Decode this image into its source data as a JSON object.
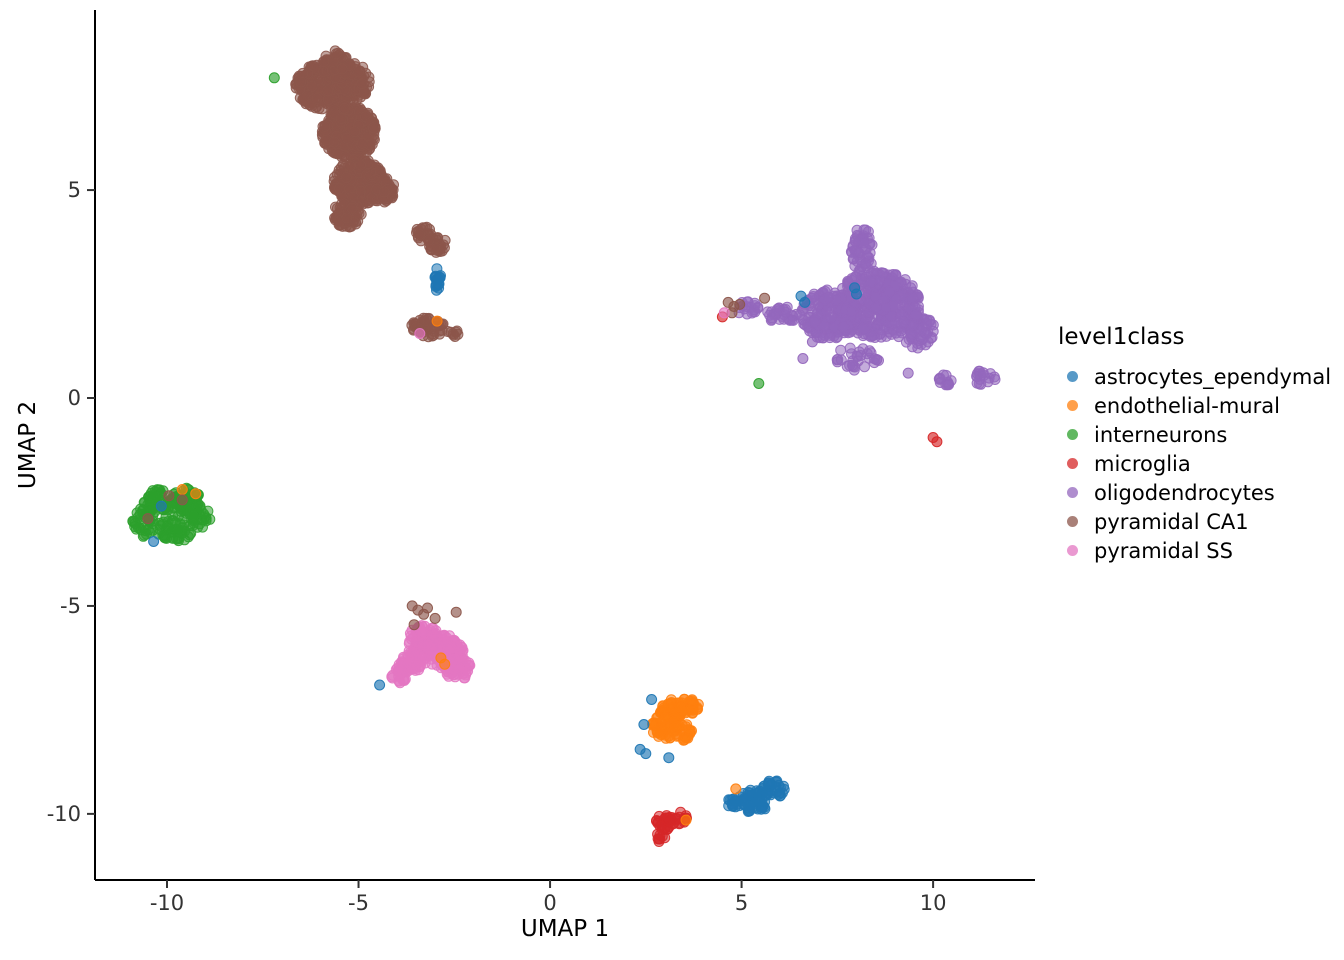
{
  "figure": {
    "legend": {
      "title": "level1class",
      "entries": [
        {
          "label": "astrocytes_ependymal",
          "color": "#1F77B4"
        },
        {
          "label": "endothelial-mural",
          "color": "#FF7F0E"
        },
        {
          "label": "interneurons",
          "color": "#2CA02C"
        },
        {
          "label": "microglia",
          "color": "#D62728"
        },
        {
          "label": "oligodendrocytes",
          "color": "#9467BD"
        },
        {
          "label": "pyramidal CA1",
          "color": "#8C564B"
        },
        {
          "label": "pyramidal SS",
          "color": "#E377C2"
        }
      ]
    }
  },
  "chart_data": {
    "type": "scatter",
    "title": "",
    "xlabel": "UMAP 1",
    "ylabel": "UMAP 2",
    "xlim": [
      -11.88,
      12.66
    ],
    "ylim": [
      -11.59,
      9.33
    ],
    "x_ticks": [
      -10,
      -5,
      0,
      5,
      10
    ],
    "y_ticks": [
      -10,
      -5,
      0,
      5
    ],
    "grid": false,
    "legend_position": "right",
    "point_radius_px": 5,
    "point_alpha": 0.55,
    "series": [
      {
        "name": "astrocytes_ependymal",
        "color": "#1F77B4",
        "clusters": [
          {
            "cx": -2.93,
            "cy": 2.85,
            "rx": 0.08,
            "ry": 0.32,
            "n": 20
          },
          {
            "cx": 5.3,
            "cy": -9.7,
            "rx": 0.4,
            "ry": 0.28,
            "n": 55
          },
          {
            "cx": 5.85,
            "cy": -9.4,
            "rx": 0.3,
            "ry": 0.22,
            "n": 30
          },
          {
            "cx": 4.8,
            "cy": -9.7,
            "rx": 0.2,
            "ry": 0.15,
            "n": 14
          }
        ],
        "points": [
          [
            6.55,
            2.45
          ],
          [
            6.65,
            2.3
          ],
          [
            7.95,
            2.65
          ],
          [
            8.0,
            2.5
          ],
          [
            -10.35,
            -3.45
          ],
          [
            -10.15,
            -2.6
          ],
          [
            -4.45,
            -6.9
          ],
          [
            2.45,
            -7.85
          ],
          [
            2.35,
            -8.45
          ],
          [
            2.5,
            -8.55
          ],
          [
            3.1,
            -8.65
          ],
          [
            2.65,
            -7.25
          ]
        ]
      },
      {
        "name": "endothelial-mural",
        "color": "#FF7F0E",
        "clusters": [
          {
            "cx": 3.2,
            "cy": -7.5,
            "rx": 0.35,
            "ry": 0.25,
            "n": 55
          },
          {
            "cx": 3.65,
            "cy": -7.4,
            "rx": 0.28,
            "ry": 0.2,
            "n": 35
          },
          {
            "cx": 3.0,
            "cy": -7.9,
            "rx": 0.35,
            "ry": 0.3,
            "n": 50
          },
          {
            "cx": 3.45,
            "cy": -8.05,
            "rx": 0.25,
            "ry": 0.22,
            "n": 25
          }
        ],
        "points": [
          [
            -2.95,
            1.85
          ],
          [
            -2.85,
            -6.25
          ],
          [
            -2.75,
            -6.4
          ],
          [
            -9.25,
            -2.3
          ],
          [
            -9.6,
            -2.2
          ],
          [
            4.85,
            -9.4
          ],
          [
            3.55,
            -10.15
          ]
        ]
      },
      {
        "name": "interneurons",
        "color": "#2CA02C",
        "clusters": [
          {
            "cx": -10.25,
            "cy": -2.5,
            "rx": 0.35,
            "ry": 0.3,
            "n": 50
          },
          {
            "cx": -9.5,
            "cy": -2.5,
            "rx": 0.4,
            "ry": 0.35,
            "n": 60
          },
          {
            "cx": -9.8,
            "cy": -3.15,
            "rx": 0.45,
            "ry": 0.35,
            "n": 50
          },
          {
            "cx": -10.6,
            "cy": -3.0,
            "rx": 0.3,
            "ry": 0.35,
            "n": 35
          },
          {
            "cx": -9.15,
            "cy": -2.85,
            "rx": 0.28,
            "ry": 0.28,
            "n": 25
          }
        ],
        "points": [
          [
            -7.2,
            7.7
          ],
          [
            5.45,
            0.35
          ]
        ]
      },
      {
        "name": "microglia",
        "color": "#D62728",
        "clusters": [
          {
            "cx": 3.0,
            "cy": -10.2,
            "rx": 0.25,
            "ry": 0.2,
            "n": 26
          },
          {
            "cx": 3.4,
            "cy": -10.1,
            "rx": 0.18,
            "ry": 0.14,
            "n": 12
          },
          {
            "cx": 2.85,
            "cy": -10.55,
            "rx": 0.15,
            "ry": 0.12,
            "n": 8
          }
        ],
        "points": [
          [
            10.0,
            -0.95
          ],
          [
            10.1,
            -1.05
          ],
          [
            4.5,
            1.95
          ]
        ]
      },
      {
        "name": "oligodendrocytes",
        "color": "#9467BD",
        "clusters": [
          {
            "cx": 8.15,
            "cy": 3.55,
            "rx": 0.3,
            "ry": 0.55,
            "n": 60
          },
          {
            "cx": 8.55,
            "cy": 2.25,
            "rx": 1.1,
            "ry": 0.8,
            "n": 420
          },
          {
            "cx": 7.3,
            "cy": 2.0,
            "rx": 0.75,
            "ry": 0.6,
            "n": 200
          },
          {
            "cx": 9.55,
            "cy": 1.6,
            "rx": 0.5,
            "ry": 0.4,
            "n": 60
          },
          {
            "cx": 8.0,
            "cy": 0.95,
            "rx": 0.6,
            "ry": 0.28,
            "n": 30
          },
          {
            "cx": 6.1,
            "cy": 2.0,
            "rx": 0.45,
            "ry": 0.2,
            "n": 30
          },
          {
            "cx": 5.15,
            "cy": 2.15,
            "rx": 0.3,
            "ry": 0.18,
            "n": 18
          },
          {
            "cx": 10.35,
            "cy": 0.45,
            "rx": 0.22,
            "ry": 0.15,
            "n": 12
          },
          {
            "cx": 11.35,
            "cy": 0.5,
            "rx": 0.3,
            "ry": 0.2,
            "n": 18
          }
        ],
        "points": [
          [
            6.6,
            0.95
          ],
          [
            6.85,
            1.35
          ],
          [
            9.35,
            0.6
          ]
        ]
      },
      {
        "name": "pyramidal CA1",
        "color": "#8C564B",
        "clusters": [
          {
            "cx": -5.9,
            "cy": 7.5,
            "rx": 0.75,
            "ry": 0.55,
            "n": 260
          },
          {
            "cx": -5.15,
            "cy": 7.6,
            "rx": 0.45,
            "ry": 0.45,
            "n": 120
          },
          {
            "cx": -5.6,
            "cy": 8.0,
            "rx": 0.35,
            "ry": 0.35,
            "n": 60
          },
          {
            "cx": -5.25,
            "cy": 6.4,
            "rx": 0.7,
            "ry": 0.65,
            "n": 340
          },
          {
            "cx": -5.0,
            "cy": 5.2,
            "rx": 0.65,
            "ry": 0.55,
            "n": 280
          },
          {
            "cx": -5.3,
            "cy": 4.4,
            "rx": 0.4,
            "ry": 0.3,
            "n": 70
          },
          {
            "cx": -4.4,
            "cy": 5.0,
            "rx": 0.35,
            "ry": 0.3,
            "n": 60
          },
          {
            "cx": -3.3,
            "cy": 3.95,
            "rx": 0.22,
            "ry": 0.18,
            "n": 22
          },
          {
            "cx": -2.95,
            "cy": 3.7,
            "rx": 0.25,
            "ry": 0.2,
            "n": 28
          },
          {
            "cx": -3.2,
            "cy": 1.7,
            "rx": 0.45,
            "ry": 0.26,
            "n": 55
          },
          {
            "cx": -2.55,
            "cy": 1.55,
            "rx": 0.15,
            "ry": 0.12,
            "n": 8
          }
        ],
        "points": [
          [
            4.65,
            2.3
          ],
          [
            4.8,
            2.2
          ],
          [
            4.75,
            2.05
          ],
          [
            4.95,
            2.25
          ],
          [
            5.6,
            2.4
          ],
          [
            -9.95,
            -2.35
          ],
          [
            -10.5,
            -2.9
          ],
          [
            -9.6,
            -2.45
          ],
          [
            -3.6,
            -5.0
          ],
          [
            -3.45,
            -5.1
          ],
          [
            -3.2,
            -5.05
          ],
          [
            -3.3,
            -5.2
          ],
          [
            -2.45,
            -5.15
          ],
          [
            -3.0,
            -5.3
          ],
          [
            -3.55,
            -5.45
          ]
        ]
      },
      {
        "name": "pyramidal SS",
        "color": "#E377C2",
        "clusters": [
          {
            "cx": -3.3,
            "cy": -5.8,
            "rx": 0.4,
            "ry": 0.35,
            "n": 80
          },
          {
            "cx": -2.75,
            "cy": -6.1,
            "rx": 0.5,
            "ry": 0.4,
            "n": 130
          },
          {
            "cx": -2.4,
            "cy": -6.5,
            "rx": 0.35,
            "ry": 0.28,
            "n": 55
          },
          {
            "cx": -3.6,
            "cy": -6.35,
            "rx": 0.35,
            "ry": 0.28,
            "n": 50
          },
          {
            "cx": -3.95,
            "cy": -6.65,
            "rx": 0.22,
            "ry": 0.2,
            "n": 20
          }
        ],
        "points": [
          [
            4.55,
            2.05
          ],
          [
            -3.4,
            1.55
          ]
        ]
      }
    ]
  }
}
